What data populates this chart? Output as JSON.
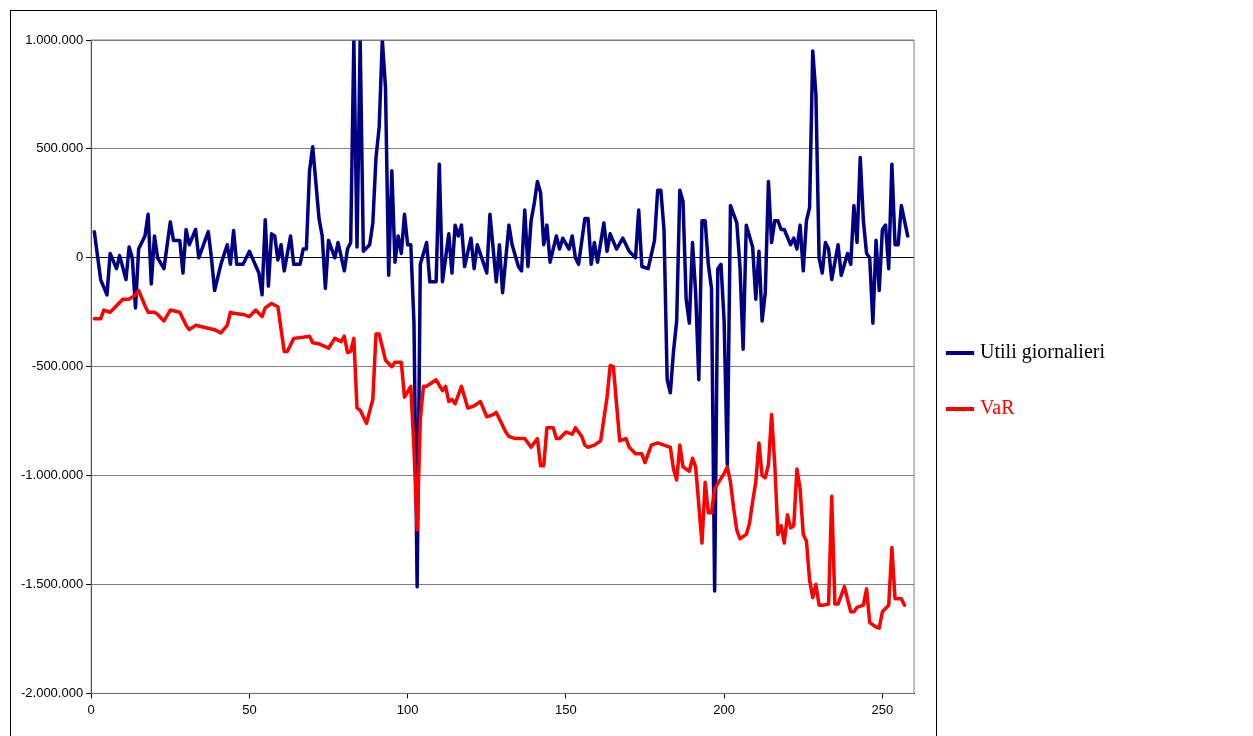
{
  "chart_data": {
    "type": "line",
    "legend": "right",
    "grid": "y",
    "marker": "none",
    "line_style": "solid",
    "xlim": [
      0,
      260
    ],
    "xticks": [
      0,
      50,
      100,
      150,
      200,
      250
    ],
    "ylim": [
      -2000000,
      1000000
    ],
    "yticks": [
      {
        "value": -2000000,
        "label": "-2.000.000"
      },
      {
        "value": -1500000,
        "label": "-1.500.000"
      },
      {
        "value": -1000000,
        "label": "-1.000.000"
      },
      {
        "value": -500000,
        "label": "-500.000"
      },
      {
        "value": 0,
        "label": "0"
      },
      {
        "value": 500000,
        "label": "500.000"
      },
      {
        "value": 1000000,
        "label": "1.000.000"
      }
    ],
    "series": [
      {
        "name": "Utili giornalieri",
        "color": "#000080",
        "x": [
          1,
          3,
          5,
          6,
          8,
          9,
          11,
          12,
          13,
          14,
          15,
          17,
          18,
          19,
          20,
          21,
          23,
          25,
          26,
          28,
          29,
          30,
          31,
          33,
          34,
          37,
          38,
          39,
          41,
          43,
          44,
          45,
          46,
          48,
          50,
          53,
          54,
          55,
          56,
          57,
          58,
          59,
          60,
          61,
          63,
          64,
          66,
          67,
          68,
          69,
          70,
          72,
          73,
          74,
          75,
          77,
          78,
          80,
          81,
          82,
          83,
          84,
          85,
          86,
          88,
          89,
          90,
          91,
          92,
          93,
          94,
          95,
          96,
          97,
          98,
          99,
          100,
          101,
          102,
          103,
          104,
          106,
          107,
          109,
          110,
          111,
          113,
          114,
          115,
          116,
          117,
          118,
          120,
          121,
          122,
          125,
          126,
          128,
          129,
          130,
          132,
          133,
          135,
          136,
          137,
          138,
          139,
          140,
          141,
          142,
          143,
          144,
          145,
          147,
          148,
          149,
          151,
          152,
          153,
          154,
          156,
          157,
          158,
          159,
          160,
          162,
          163,
          164,
          166,
          168,
          170,
          172,
          173,
          174,
          176,
          178,
          179,
          180,
          181,
          182,
          183,
          184,
          185,
          186,
          187,
          188,
          189,
          190,
          191,
          192,
          193,
          194,
          195,
          196,
          197,
          198,
          199,
          200,
          201,
          202,
          204,
          205,
          206,
          207,
          209,
          210,
          211,
          212,
          213,
          214,
          215,
          216,
          217,
          218,
          219,
          221,
          222,
          223,
          224,
          225,
          226,
          227,
          228,
          229,
          230,
          231,
          232,
          233,
          234,
          236,
          237,
          239,
          240,
          241,
          242,
          243,
          244,
          245,
          246,
          247,
          248,
          249,
          250,
          251,
          252,
          253,
          254,
          255,
          256,
          258
        ],
        "values": [
          120000,
          -100000,
          -170000,
          20000,
          -50000,
          10000,
          -100000,
          50000,
          0,
          -230000,
          40000,
          100000,
          200000,
          -120000,
          100000,
          0,
          -50000,
          165000,
          80000,
          80000,
          -70000,
          130000,
          60000,
          130000,
          0,
          120000,
          0,
          -150000,
          -30000,
          60000,
          -30000,
          125000,
          -30000,
          -30000,
          30000,
          -70000,
          -170000,
          175000,
          -130000,
          110000,
          100000,
          -10000,
          60000,
          -60000,
          100000,
          -30000,
          -30000,
          40000,
          40000,
          400000,
          510000,
          180000,
          100000,
          -140000,
          80000,
          0,
          70000,
          -60000,
          40000,
          70000,
          1000000,
          50000,
          1000000,
          30000,
          60000,
          160000,
          460000,
          600000,
          1000000,
          780000,
          -80000,
          400000,
          -20000,
          100000,
          20000,
          200000,
          60000,
          60000,
          -300000,
          -1510000,
          -30000,
          70000,
          -110000,
          -110000,
          430000,
          -110000,
          110000,
          -70000,
          150000,
          100000,
          150000,
          -40000,
          90000,
          -50000,
          60000,
          -70000,
          200000,
          -110000,
          60000,
          -160000,
          150000,
          60000,
          -40000,
          -60000,
          220000,
          -40000,
          170000,
          250000,
          350000,
          300000,
          60000,
          150000,
          -20000,
          100000,
          40000,
          90000,
          40000,
          100000,
          0,
          -30000,
          180000,
          180000,
          -30000,
          70000,
          -20000,
          160000,
          30000,
          110000,
          40000,
          90000,
          30000,
          0,
          220000,
          -40000,
          -50000,
          80000,
          310000,
          310000,
          130000,
          -560000,
          -620000,
          -430000,
          -290000,
          310000,
          260000,
          -190000,
          -300000,
          70000,
          -160000,
          -560000,
          170000,
          170000,
          -30000,
          -140000,
          -1530000,
          -50000,
          -30000,
          -290000,
          -950000,
          240000,
          160000,
          -40000,
          -420000,
          150000,
          50000,
          -190000,
          30000,
          -290000,
          -160000,
          350000,
          70000,
          170000,
          170000,
          130000,
          130000,
          60000,
          90000,
          40000,
          150000,
          -60000,
          170000,
          230000,
          950000,
          750000,
          0,
          -70000,
          70000,
          40000,
          -100000,
          60000,
          -80000,
          20000,
          -30000,
          240000,
          70000,
          460000,
          170000,
          20000,
          0,
          -300000,
          80000,
          -150000,
          130000,
          150000,
          -50000,
          430000,
          60000,
          60000,
          240000,
          100000
        ]
      },
      {
        "name": "VaR",
        "color": "#ff0000",
        "x": [
          1,
          3,
          4,
          6,
          8,
          10,
          12,
          14,
          15,
          17,
          18,
          20,
          21,
          23,
          25,
          28,
          30,
          31,
          33,
          36,
          39,
          41,
          43,
          44,
          45,
          48,
          50,
          52,
          54,
          55,
          57,
          59,
          61,
          62,
          64,
          67,
          69,
          70,
          72,
          75,
          77,
          79,
          80,
          81,
          82,
          83,
          84,
          85,
          87,
          89,
          90,
          91,
          93,
          95,
          96,
          98,
          99,
          101,
          102,
          103,
          104,
          105,
          106,
          109,
          111,
          112,
          113,
          114,
          115,
          117,
          119,
          121,
          123,
          125,
          127,
          128,
          130,
          131,
          132,
          134,
          137,
          139,
          141,
          142,
          143,
          144,
          146,
          147,
          148,
          150,
          152,
          153,
          155,
          156,
          157,
          159,
          161,
          163,
          164,
          165,
          166,
          167,
          169,
          170,
          172,
          174,
          175,
          177,
          179,
          181,
          183,
          184,
          185,
          186,
          187,
          189,
          190,
          191,
          193,
          194,
          195,
          196,
          197,
          200,
          201,
          202,
          203,
          204,
          205,
          207,
          208,
          209,
          210,
          211,
          212,
          213,
          214,
          215,
          216,
          217,
          218,
          219,
          220,
          221,
          222,
          223,
          224,
          225,
          226,
          227,
          228,
          229,
          230,
          231,
          233,
          234,
          235,
          236,
          238,
          240,
          241,
          242,
          244,
          245,
          246,
          248,
          249,
          250,
          252,
          253,
          254,
          256,
          257
        ],
        "values": [
          -280000,
          -280000,
          -240000,
          -250000,
          -220000,
          -190000,
          -190000,
          -170000,
          -150000,
          -220000,
          -250000,
          -250000,
          -260000,
          -290000,
          -240000,
          -250000,
          -310000,
          -330000,
          -310000,
          -320000,
          -330000,
          -345000,
          -310000,
          -250000,
          -255000,
          -260000,
          -270000,
          -240000,
          -270000,
          -230000,
          -210000,
          -225000,
          -430000,
          -430000,
          -370000,
          -365000,
          -360000,
          -390000,
          -395000,
          -415000,
          -370000,
          -385000,
          -360000,
          -435000,
          -430000,
          -370000,
          -690000,
          -700000,
          -760000,
          -650000,
          -350000,
          -350000,
          -470000,
          -500000,
          -480000,
          -480000,
          -640000,
          -590000,
          -880000,
          -1250000,
          -740000,
          -590000,
          -590000,
          -560000,
          -610000,
          -590000,
          -660000,
          -650000,
          -670000,
          -590000,
          -690000,
          -680000,
          -660000,
          -730000,
          -720000,
          -710000,
          -770000,
          -800000,
          -820000,
          -830000,
          -830000,
          -870000,
          -830000,
          -955000,
          -955000,
          -780000,
          -780000,
          -830000,
          -830000,
          -800000,
          -810000,
          -780000,
          -820000,
          -860000,
          -870000,
          -860000,
          -840000,
          -640000,
          -495000,
          -500000,
          -670000,
          -840000,
          -830000,
          -870000,
          -900000,
          -900000,
          -940000,
          -860000,
          -850000,
          -860000,
          -870000,
          -970000,
          -1020000,
          -860000,
          -960000,
          -980000,
          -920000,
          -960000,
          -1310000,
          -1030000,
          -1170000,
          -1170000,
          -1060000,
          -990000,
          -960000,
          -1030000,
          -1150000,
          -1250000,
          -1290000,
          -1270000,
          -1220000,
          -1120000,
          -1030000,
          -850000,
          -1000000,
          -1010000,
          -950000,
          -720000,
          -950000,
          -1270000,
          -1230000,
          -1310000,
          -1180000,
          -1240000,
          -1230000,
          -970000,
          -1060000,
          -1270000,
          -1300000,
          -1480000,
          -1560000,
          -1500000,
          -1595000,
          -1595000,
          -1590000,
          -1095000,
          -1590000,
          -1590000,
          -1510000,
          -1625000,
          -1625000,
          -1605000,
          -1595000,
          -1520000,
          -1675000,
          -1695000,
          -1700000,
          -1625000,
          -1595000,
          -1330000,
          -1565000,
          -1565000,
          -1595000
        ]
      }
    ]
  }
}
